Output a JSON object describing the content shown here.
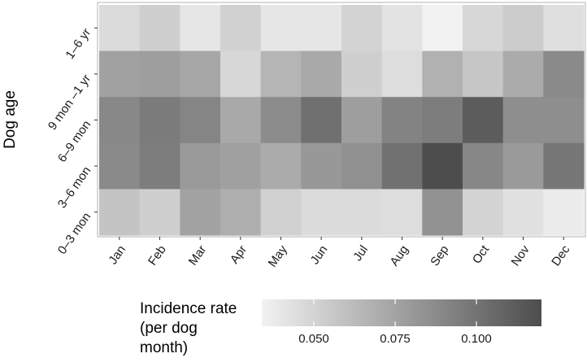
{
  "chart_data": {
    "type": "heatmap",
    "title": "",
    "xlabel": "",
    "ylabel": "Dog age",
    "x_categories": [
      "Jan",
      "Feb",
      "Mar",
      "Apr",
      "May",
      "Jun",
      "Jul",
      "Aug",
      "Sep",
      "Oct",
      "Nov",
      "Dec"
    ],
    "y_categories": [
      "1–6 yr",
      "9 mon –1 yr",
      "6–9 mon",
      "3–6 mon",
      "0–3 mon"
    ],
    "values": [
      [
        0.046,
        0.052,
        0.04,
        0.051,
        0.04,
        0.04,
        0.05,
        0.042,
        0.034,
        0.048,
        0.054,
        0.044
      ],
      [
        0.076,
        0.078,
        0.073,
        0.048,
        0.066,
        0.072,
        0.052,
        0.045,
        0.068,
        0.057,
        0.071,
        0.088
      ],
      [
        0.089,
        0.096,
        0.091,
        0.072,
        0.087,
        0.102,
        0.078,
        0.092,
        0.095,
        0.112,
        0.086,
        0.086
      ],
      [
        0.088,
        0.095,
        0.08,
        0.077,
        0.071,
        0.081,
        0.085,
        0.101,
        0.12,
        0.09,
        0.08,
        0.098
      ],
      [
        0.058,
        0.052,
        0.075,
        0.069,
        0.051,
        0.046,
        0.046,
        0.045,
        0.084,
        0.05,
        0.043,
        0.037
      ]
    ],
    "color_scale": {
      "low_color": "#f2f2f2",
      "high_color": "#4d4d4d",
      "min": 0.034,
      "max": 0.12,
      "breaks": [
        0.05,
        0.075,
        0.1
      ],
      "break_labels": [
        "0.050",
        "0.075",
        "0.100"
      ]
    },
    "legend": {
      "title_lines": [
        "Incidence rate",
        "(per dog",
        "month)"
      ],
      "position": "bottom"
    },
    "grid": false
  }
}
